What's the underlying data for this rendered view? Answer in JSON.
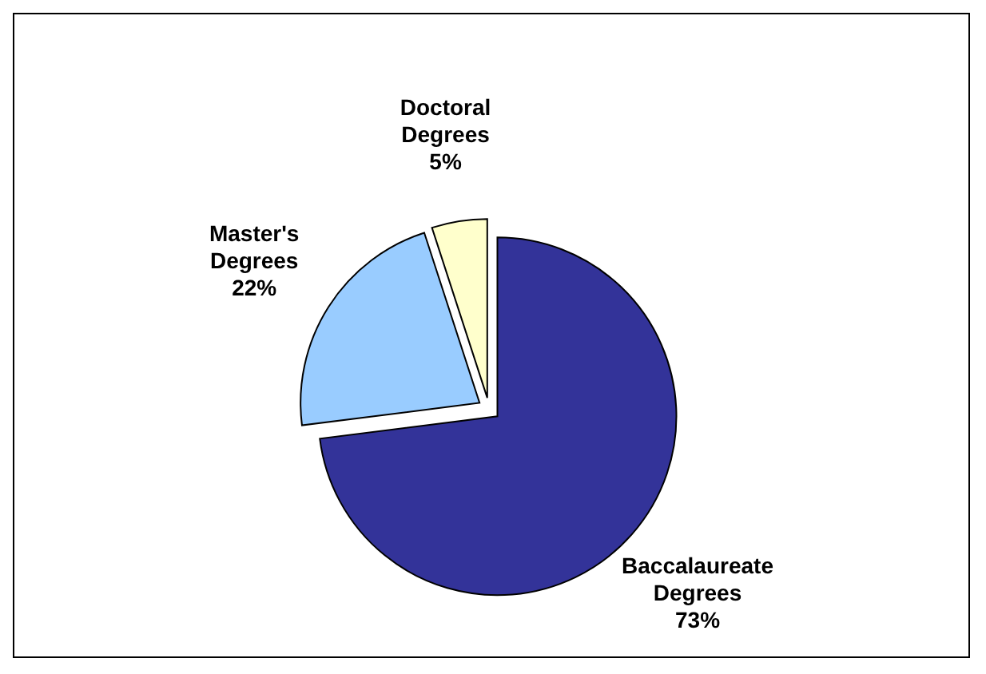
{
  "chart_data": {
    "type": "pie",
    "categories": [
      "Baccalaureate Degrees",
      "Master's Degrees",
      "Doctoral Degrees"
    ],
    "values": [
      73,
      22,
      5
    ],
    "colors": [
      "#333399",
      "#99ccff",
      "#ffffcc"
    ],
    "value_labels": [
      "73%",
      "22%",
      "5%"
    ]
  }
}
